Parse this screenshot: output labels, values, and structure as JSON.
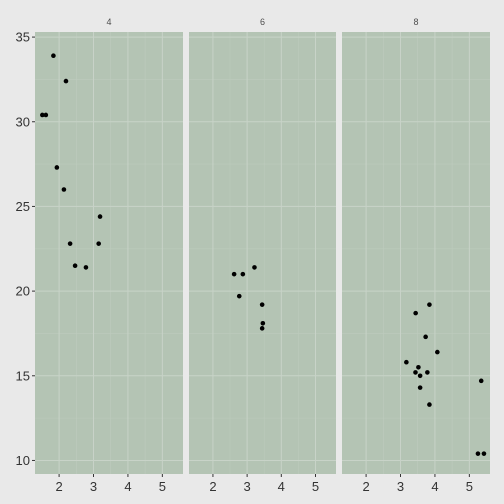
{
  "chart_data": {
    "type": "scatter",
    "title": "",
    "xlabel": "",
    "ylabel": "",
    "facets": [
      "4",
      "6",
      "8"
    ],
    "xlim": [
      1.3,
      5.6
    ],
    "ylim": [
      9.2,
      35.3
    ],
    "x_ticks": [
      "2",
      "3",
      "4",
      "5"
    ],
    "y_ticks": [
      "10",
      "15",
      "20",
      "25",
      "30",
      "35"
    ],
    "grid": true,
    "series": [
      {
        "facet": "4",
        "points": [
          [
            1.835,
            33.9
          ],
          [
            2.2,
            32.4
          ],
          [
            1.513,
            30.4
          ],
          [
            1.615,
            30.4
          ],
          [
            1.935,
            27.3
          ],
          [
            2.14,
            26.0
          ],
          [
            3.19,
            24.4
          ],
          [
            2.32,
            22.8
          ],
          [
            3.15,
            22.8
          ],
          [
            2.465,
            21.5
          ],
          [
            2.78,
            21.4
          ]
        ]
      },
      {
        "facet": "6",
        "points": [
          [
            2.62,
            21.0
          ],
          [
            2.875,
            21.0
          ],
          [
            3.215,
            21.4
          ],
          [
            2.77,
            19.7
          ],
          [
            3.44,
            19.2
          ],
          [
            3.44,
            17.8
          ],
          [
            3.46,
            18.1
          ]
        ]
      },
      {
        "facet": "8",
        "points": [
          [
            3.44,
            18.7
          ],
          [
            3.84,
            19.2
          ],
          [
            3.73,
            17.3
          ],
          [
            4.07,
            16.4
          ],
          [
            3.17,
            15.8
          ],
          [
            3.52,
            15.5
          ],
          [
            3.435,
            15.2
          ],
          [
            3.78,
            15.2
          ],
          [
            3.57,
            15.0
          ],
          [
            3.57,
            14.3
          ],
          [
            3.84,
            13.3
          ],
          [
            5.25,
            10.4
          ],
          [
            5.424,
            10.4
          ],
          [
            5.345,
            14.7
          ]
        ]
      }
    ]
  }
}
